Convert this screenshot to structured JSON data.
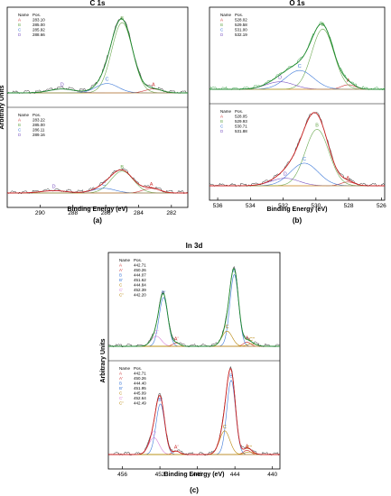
{
  "figure": {
    "panel_labels": [
      "(a)",
      "(b)",
      "(c)"
    ]
  },
  "chart_data": [
    {
      "type": "line",
      "panel": "(a)",
      "title": "C 1s",
      "xlabel": "Binding Energy (eV)",
      "ylabel": "Arbitrary Units",
      "xlim": [
        292,
        281
      ],
      "xticks": [
        290,
        288,
        286,
        284,
        282
      ],
      "reversed_x": true,
      "colors": {
        "envelope": "#1f8a2f",
        "spectrum": "#222222",
        "A": "#cc3333",
        "B": "#6aa84f",
        "C": "#3c78d8",
        "D": "#7e57c2"
      },
      "subplots": [
        {
          "position": "top",
          "legend_header": [
            "Name",
            "Pos."
          ],
          "legend": [
            {
              "name": "A",
              "pos": "283.10"
            },
            {
              "name": "B",
              "pos": "285.00"
            },
            {
              "name": "C",
              "pos": "285.92"
            },
            {
              "name": "D",
              "pos": "288.66"
            }
          ],
          "envelope_color": "#1f8a2f",
          "spectrum_color": "#222222",
          "peaks": [
            {
              "label": "A",
              "center": 283.1,
              "height": 0.05,
              "fwhm": 1.2,
              "color": "#cc3333"
            },
            {
              "label": "B",
              "center": 285.0,
              "height": 0.9,
              "fwhm": 1.5,
              "color": "#6aa84f"
            },
            {
              "label": "C",
              "center": 285.92,
              "height": 0.12,
              "fwhm": 1.6,
              "color": "#3c78d8"
            },
            {
              "label": "D",
              "center": 288.66,
              "height": 0.05,
              "fwhm": 1.8,
              "color": "#7e57c2"
            }
          ]
        },
        {
          "position": "bottom",
          "legend_header": [
            "Name",
            "Pos."
          ],
          "legend": [
            {
              "name": "A",
              "pos": "283.22"
            },
            {
              "name": "B",
              "pos": "285.00"
            },
            {
              "name": "C",
              "pos": "286.11"
            },
            {
              "name": "D",
              "pos": "289.16"
            }
          ],
          "envelope_color": "#cc2222",
          "spectrum_color": "#222222",
          "peaks": [
            {
              "label": "A",
              "center": 283.22,
              "height": 0.06,
              "fwhm": 1.2,
              "color": "#cc3333"
            },
            {
              "label": "B",
              "center": 285.0,
              "height": 0.28,
              "fwhm": 1.6,
              "color": "#6aa84f"
            },
            {
              "label": "C",
              "center": 286.11,
              "height": 0.06,
              "fwhm": 1.6,
              "color": "#3c78d8"
            },
            {
              "label": "D",
              "center": 289.16,
              "height": 0.03,
              "fwhm": 1.8,
              "color": "#7e57c2"
            }
          ]
        }
      ]
    },
    {
      "type": "line",
      "panel": "(b)",
      "title": "O 1s",
      "xlabel": "Binding Energy (eV)",
      "ylabel": "",
      "xlim": [
        536.5,
        525.8
      ],
      "xticks": [
        536,
        534,
        532,
        530,
        528,
        526
      ],
      "reversed_x": true,
      "subplots": [
        {
          "position": "top",
          "legend_header": [
            "Name",
            "Pos."
          ],
          "legend": [
            {
              "name": "A",
              "pos": "528.02"
            },
            {
              "name": "B",
              "pos": "529.58"
            },
            {
              "name": "C",
              "pos": "531.00"
            },
            {
              "name": "D",
              "pos": "532.19"
            }
          ],
          "envelope_color": "#1f8a2f",
          "spectrum_color": "#2a9a3a",
          "peaks": [
            {
              "label": "A",
              "center": 528.02,
              "height": 0.06,
              "fwhm": 1.0,
              "color": "#cc3333"
            },
            {
              "label": "B",
              "center": 529.58,
              "height": 0.8,
              "fwhm": 1.6,
              "color": "#6aa84f"
            },
            {
              "label": "C",
              "center": 531.0,
              "height": 0.25,
              "fwhm": 2.0,
              "color": "#3c78d8"
            },
            {
              "label": "D",
              "center": 532.19,
              "height": 0.1,
              "fwhm": 2.0,
              "color": "#7e57c2"
            }
          ]
        },
        {
          "position": "bottom",
          "legend_header": [
            "Name",
            "Pos."
          ],
          "legend": [
            {
              "name": "A",
              "pos": "528.05"
            },
            {
              "name": "B",
              "pos": "529.93"
            },
            {
              "name": "C",
              "pos": "530.71"
            },
            {
              "name": "D",
              "pos": "531.88"
            }
          ],
          "envelope_color": "#cc2222",
          "spectrum_color": "#222222",
          "peaks": [
            {
              "label": "A",
              "center": 528.05,
              "height": 0.05,
              "fwhm": 1.0,
              "color": "#cc3333"
            },
            {
              "label": "B",
              "center": 529.93,
              "height": 0.75,
              "fwhm": 1.7,
              "color": "#6aa84f"
            },
            {
              "label": "C",
              "center": 530.71,
              "height": 0.3,
              "fwhm": 2.0,
              "color": "#3c78d8"
            },
            {
              "label": "D",
              "center": 531.88,
              "height": 0.1,
              "fwhm": 2.0,
              "color": "#7e57c2"
            }
          ]
        }
      ]
    },
    {
      "type": "line",
      "panel": "(c)",
      "title": "In 3d",
      "xlabel": "Binding Energy (eV)",
      "ylabel": "Arbitrary Units",
      "xlim": [
        457.5,
        439.2
      ],
      "xticks": [
        456,
        452,
        448,
        444,
        440
      ],
      "reversed_x": true,
      "subplots": [
        {
          "position": "top",
          "legend_header": [
            "Name",
            "Pos."
          ],
          "legend": [
            {
              "name": "A",
              "pos": "442.71"
            },
            {
              "name": "A'",
              "pos": "450.26"
            },
            {
              "name": "B",
              "pos": "444.07"
            },
            {
              "name": "B'",
              "pos": "451.62"
            },
            {
              "name": "C",
              "pos": "444.84"
            },
            {
              "name": "C'",
              "pos": "452.39"
            },
            {
              "name": "C''",
              "pos": "442.20"
            }
          ],
          "envelope_color": "#1f8a2f",
          "spectrum_color": "#222222",
          "peaks": [
            {
              "label": "A",
              "center": 442.71,
              "height": 0.05,
              "fwhm": 0.9,
              "color": "#cc3333"
            },
            {
              "label": "A'",
              "center": 450.26,
              "height": 0.04,
              "fwhm": 0.9,
              "color": "#cc3333"
            },
            {
              "label": "B",
              "center": 444.07,
              "height": 0.85,
              "fwhm": 1.1,
              "color": "#3c78d8"
            },
            {
              "label": "B'",
              "center": 451.62,
              "height": 0.58,
              "fwhm": 1.1,
              "color": "#3c78d8"
            },
            {
              "label": "C",
              "center": 444.84,
              "height": 0.18,
              "fwhm": 1.3,
              "color": "#b8860b"
            },
            {
              "label": "C'",
              "center": 452.39,
              "height": 0.12,
              "fwhm": 1.3,
              "color": "#d77fd7"
            },
            {
              "label": "C''",
              "center": 442.2,
              "height": 0.03,
              "fwhm": 1.2,
              "color": "#b8860b"
            }
          ]
        },
        {
          "position": "bottom",
          "legend_header": [
            "Name",
            "Pos."
          ],
          "legend": [
            {
              "name": "A",
              "pos": "442.71"
            },
            {
              "name": "A'",
              "pos": "450.26"
            },
            {
              "name": "B",
              "pos": "444.40"
            },
            {
              "name": "B'",
              "pos": "451.95"
            },
            {
              "name": "C",
              "pos": "445.09"
            },
            {
              "name": "C'",
              "pos": "452.64"
            },
            {
              "name": "C''",
              "pos": "442.49"
            }
          ],
          "envelope_color": "#cc2222",
          "spectrum_color": "#222222",
          "peaks": [
            {
              "label": "A",
              "center": 442.71,
              "height": 0.05,
              "fwhm": 0.9,
              "color": "#cc3333"
            },
            {
              "label": "A'",
              "center": 450.26,
              "height": 0.04,
              "fwhm": 0.9,
              "color": "#cc3333"
            },
            {
              "label": "B",
              "center": 444.4,
              "height": 0.88,
              "fwhm": 1.1,
              "color": "#3c78d8"
            },
            {
              "label": "B'",
              "center": 451.95,
              "height": 0.6,
              "fwhm": 1.1,
              "color": "#3c78d8"
            },
            {
              "label": "C",
              "center": 445.09,
              "height": 0.28,
              "fwhm": 1.3,
              "color": "#b8860b"
            },
            {
              "label": "C'",
              "center": 452.64,
              "height": 0.2,
              "fwhm": 1.3,
              "color": "#d77fd7"
            },
            {
              "label": "C''",
              "center": 442.49,
              "height": 0.03,
              "fwhm": 1.2,
              "color": "#b8860b"
            }
          ]
        }
      ]
    }
  ]
}
